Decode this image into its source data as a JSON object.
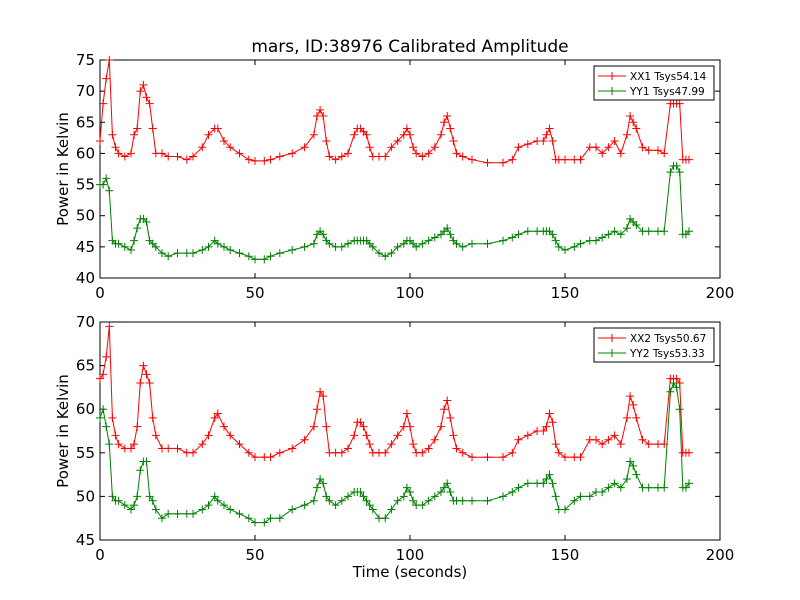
{
  "figure": {
    "title": "mars, ID:38976 Calibrated Amplitude"
  },
  "chart_data": [
    {
      "type": "line",
      "title": "mars, ID:38976 Calibrated Amplitude",
      "xlabel": "",
      "ylabel": "Power in Kelvin",
      "xlim": [
        0,
        200
      ],
      "ylim": [
        40,
        75
      ],
      "xticks": [
        0,
        50,
        100,
        150,
        200
      ],
      "yticks": [
        40,
        45,
        50,
        55,
        60,
        65,
        70,
        75
      ],
      "grid": false,
      "legend_position": "top-right",
      "series": [
        {
          "name": "XX1 Tsys54.14",
          "color": "#ff0000",
          "marker": "plus",
          "x": [
            0,
            1,
            2,
            3,
            4,
            5,
            6,
            8,
            10,
            11,
            12,
            13,
            14,
            15,
            16,
            17,
            18,
            20,
            22,
            25,
            28,
            30,
            33,
            35,
            37,
            38,
            40,
            42,
            45,
            48,
            50,
            53,
            55,
            58,
            62,
            66,
            69,
            70,
            71,
            72,
            73,
            74,
            76,
            78,
            80,
            82,
            83,
            84,
            85,
            86,
            87,
            88,
            90,
            92,
            94,
            96,
            98,
            99,
            100,
            101,
            102,
            104,
            106,
            108,
            110,
            111,
            112,
            113,
            114,
            115,
            117,
            120,
            125,
            130,
            133,
            135,
            138,
            141,
            143,
            144,
            145,
            146,
            147,
            148,
            150,
            153,
            155,
            158,
            160,
            162,
            164,
            166,
            168,
            170,
            171,
            172,
            173,
            175,
            177,
            180,
            182,
            184,
            185,
            186,
            187,
            188,
            189,
            190
          ],
          "values": [
            62,
            68,
            72,
            75,
            63,
            61,
            60,
            59.5,
            60,
            63,
            64,
            70,
            71,
            69,
            68,
            64,
            60,
            60,
            59.5,
            59.5,
            59,
            59.5,
            61,
            63,
            64,
            64,
            62,
            61,
            60,
            59,
            58.8,
            58.8,
            59,
            59.5,
            60,
            61,
            63,
            66,
            67,
            66,
            62,
            59.5,
            59,
            59.5,
            60,
            63,
            64,
            64,
            63.5,
            63,
            61,
            59.5,
            59.5,
            59.5,
            61,
            62,
            63,
            64,
            63,
            61,
            60,
            59.5,
            60,
            61,
            63,
            65,
            66,
            64,
            62,
            60,
            59.5,
            59,
            58.5,
            58.5,
            59,
            61,
            61.5,
            62,
            62,
            63,
            64,
            62,
            59,
            59,
            59,
            59,
            59,
            61,
            61,
            60,
            61,
            62,
            60,
            63,
            66,
            65,
            64,
            61,
            60.5,
            60.5,
            60,
            68,
            68,
            68,
            68,
            59,
            59,
            59
          ]
        },
        {
          "name": "YY1 Tsys47.99",
          "color": "#008000",
          "marker": "plus",
          "x": [
            0,
            1,
            2,
            3,
            4,
            5,
            6,
            8,
            10,
            11,
            12,
            13,
            14,
            15,
            16,
            17,
            18,
            20,
            22,
            25,
            28,
            30,
            33,
            35,
            37,
            38,
            40,
            42,
            45,
            48,
            50,
            53,
            55,
            58,
            62,
            66,
            69,
            70,
            71,
            72,
            73,
            74,
            76,
            78,
            80,
            82,
            83,
            84,
            85,
            86,
            87,
            88,
            90,
            92,
            94,
            96,
            98,
            99,
            100,
            101,
            102,
            104,
            106,
            108,
            110,
            111,
            112,
            113,
            114,
            115,
            117,
            120,
            125,
            130,
            133,
            135,
            138,
            141,
            143,
            144,
            145,
            146,
            147,
            148,
            150,
            153,
            155,
            158,
            160,
            162,
            164,
            166,
            168,
            170,
            171,
            172,
            173,
            175,
            177,
            180,
            182,
            184,
            185,
            186,
            187,
            188,
            189,
            190
          ],
          "values": [
            55,
            55,
            56,
            54,
            46,
            45.5,
            45.5,
            45,
            44.5,
            46,
            48,
            49.5,
            49.5,
            49,
            46,
            45.5,
            45,
            44,
            43.5,
            44,
            44,
            44,
            44.5,
            45,
            46,
            45.5,
            45,
            44.5,
            44,
            43.5,
            43,
            43,
            43.5,
            44,
            44.5,
            45,
            45.5,
            47,
            47.5,
            47,
            46,
            45.5,
            45,
            45,
            45.5,
            46,
            46,
            46,
            46,
            46,
            45.5,
            45,
            44,
            43.5,
            44,
            45,
            45.5,
            46,
            46,
            45.5,
            45,
            45.5,
            46,
            46.5,
            47,
            47.5,
            48,
            47,
            46,
            45.5,
            45,
            45.5,
            45.5,
            46,
            46.5,
            47,
            47.5,
            47.5,
            47.5,
            47.5,
            47.5,
            47,
            46,
            45,
            44.5,
            45,
            45.5,
            46,
            46,
            46.5,
            47,
            47.5,
            47,
            48,
            49.5,
            49,
            48.5,
            47.5,
            47.5,
            47.5,
            47.5,
            57,
            58,
            58,
            57,
            47,
            47,
            47.5
          ]
        }
      ]
    },
    {
      "type": "line",
      "title": "",
      "xlabel": "Time (seconds)",
      "ylabel": "Power in Kelvin",
      "xlim": [
        0,
        200
      ],
      "ylim": [
        45,
        70
      ],
      "xticks": [
        0,
        50,
        100,
        150,
        200
      ],
      "yticks": [
        45,
        50,
        55,
        60,
        65,
        70
      ],
      "grid": false,
      "legend_position": "top-right",
      "series": [
        {
          "name": "XX2 Tsys50.67",
          "color": "#ff0000",
          "marker": "plus",
          "x": [
            0,
            1,
            2,
            3,
            4,
            5,
            6,
            8,
            10,
            11,
            12,
            13,
            14,
            15,
            16,
            17,
            18,
            20,
            22,
            25,
            28,
            30,
            33,
            35,
            37,
            38,
            40,
            42,
            45,
            48,
            50,
            53,
            55,
            58,
            62,
            66,
            69,
            70,
            71,
            72,
            73,
            74,
            76,
            78,
            80,
            82,
            83,
            84,
            85,
            86,
            87,
            88,
            90,
            92,
            94,
            96,
            98,
            99,
            100,
            101,
            102,
            104,
            106,
            108,
            110,
            111,
            112,
            113,
            114,
            115,
            117,
            120,
            125,
            130,
            133,
            135,
            138,
            141,
            143,
            144,
            145,
            146,
            147,
            148,
            150,
            153,
            155,
            158,
            160,
            162,
            164,
            166,
            168,
            170,
            171,
            172,
            173,
            175,
            177,
            180,
            182,
            184,
            185,
            186,
            187,
            188,
            189,
            190
          ],
          "values": [
            63.5,
            64,
            66,
            69.5,
            59,
            57,
            56,
            55.5,
            55.5,
            56,
            58,
            63,
            65,
            64,
            63,
            59,
            57,
            55.5,
            55.5,
            55.5,
            55,
            55,
            56,
            57,
            59,
            59.5,
            58,
            57,
            56,
            55,
            54.5,
            54.5,
            54.5,
            55,
            55.5,
            56.5,
            58,
            60,
            62,
            61.5,
            58,
            55,
            55,
            55,
            55.5,
            57,
            58.5,
            58.5,
            58,
            57,
            56,
            55,
            55,
            55,
            56,
            57,
            58,
            59.5,
            58,
            56,
            55,
            55,
            55.5,
            56.5,
            58,
            60,
            61,
            59,
            57,
            55.5,
            55,
            54.5,
            54.5,
            54.5,
            55,
            56.5,
            57,
            57.5,
            57.5,
            58,
            59.5,
            58.5,
            56,
            55,
            54.5,
            54.5,
            54.5,
            56.5,
            56.5,
            56,
            56.5,
            57,
            56,
            59,
            61.5,
            60.5,
            59,
            56.5,
            56,
            56,
            56,
            63.5,
            63.5,
            63.5,
            63,
            55,
            55,
            55
          ]
        },
        {
          "name": "YY2 Tsys53.33",
          "color": "#008000",
          "marker": "plus",
          "x": [
            0,
            1,
            2,
            3,
            4,
            5,
            6,
            8,
            10,
            11,
            12,
            13,
            14,
            15,
            16,
            17,
            18,
            20,
            22,
            25,
            28,
            30,
            33,
            35,
            37,
            38,
            40,
            42,
            45,
            48,
            50,
            53,
            55,
            58,
            62,
            66,
            69,
            70,
            71,
            72,
            73,
            74,
            76,
            78,
            80,
            82,
            83,
            84,
            85,
            86,
            87,
            88,
            90,
            92,
            94,
            96,
            98,
            99,
            100,
            101,
            102,
            104,
            106,
            108,
            110,
            111,
            112,
            113,
            114,
            115,
            117,
            120,
            125,
            130,
            133,
            135,
            138,
            141,
            143,
            144,
            145,
            146,
            147,
            148,
            150,
            153,
            155,
            158,
            160,
            162,
            164,
            166,
            168,
            170,
            171,
            172,
            173,
            175,
            177,
            180,
            182,
            184,
            185,
            186,
            187,
            188,
            189,
            190
          ],
          "values": [
            59,
            60,
            58,
            56,
            50,
            49.5,
            49.5,
            49,
            48.5,
            49,
            50,
            53,
            54,
            54,
            50,
            49.5,
            48.5,
            47.5,
            48,
            48,
            48,
            48,
            48.5,
            49,
            50,
            49.5,
            49,
            48.5,
            48,
            47.5,
            47,
            47,
            47.5,
            47.5,
            48.5,
            49,
            49.5,
            51,
            52,
            51.5,
            50,
            49.5,
            49,
            49.5,
            50,
            50.5,
            50.5,
            50.5,
            50,
            49.5,
            49,
            48.5,
            47.5,
            47.5,
            48.5,
            49.5,
            50,
            51,
            50.5,
            49.5,
            49,
            49,
            49.5,
            50,
            50.5,
            51,
            51.5,
            50.5,
            49.5,
            49.5,
            49.5,
            49.5,
            49.5,
            50,
            50.5,
            51,
            51.5,
            51.5,
            51.5,
            52,
            52.5,
            51.5,
            50,
            48.5,
            48.5,
            49.5,
            50,
            50,
            50.5,
            50.5,
            51,
            51.5,
            51,
            52,
            54,
            53.5,
            52.5,
            51,
            51,
            51,
            51,
            62,
            63,
            62.5,
            60,
            51,
            51,
            51.5
          ]
        }
      ]
    }
  ]
}
